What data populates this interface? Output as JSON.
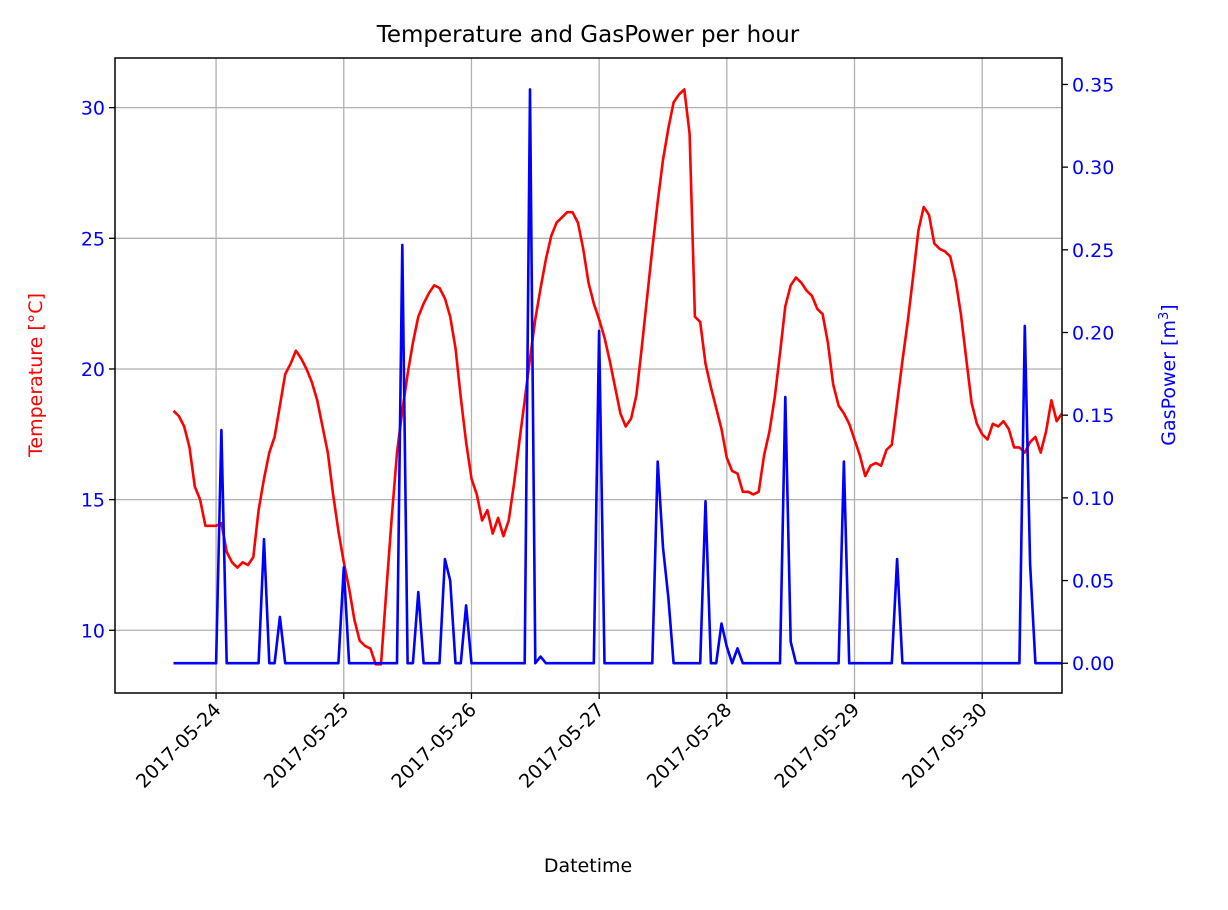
{
  "chart_data": {
    "type": "line",
    "title": "Temperature and GasPower per hour",
    "xlabel": "Datetime",
    "y_left_label": "Temperature [°C]",
    "y_right_label_base": "GasPower [m",
    "y_right_label_sup": "3",
    "y_right_label_end": "]",
    "x_range": [
      "2017-05-23T05:00",
      "2017-05-30T15:00"
    ],
    "x_ticks": [
      "2017-05-24",
      "2017-05-25",
      "2017-05-26",
      "2017-05-27",
      "2017-05-28",
      "2017-05-29",
      "2017-05-30"
    ],
    "y_left_range": [
      7.6,
      31.9
    ],
    "y_left_ticks": [
      "10",
      "15",
      "20",
      "25",
      "30"
    ],
    "y_right_range": [
      -0.018,
      0.366
    ],
    "y_right_ticks": [
      "0.00",
      "0.05",
      "0.10",
      "0.15",
      "0.20",
      "0.25",
      "0.30",
      "0.35"
    ],
    "grid": true,
    "colors": {
      "temperature": "#ff0000",
      "gaspower": "#0000ff",
      "axis_text_left": "#0000ff",
      "axis_text_right": "#0000ff",
      "left_label": "#ff0000",
      "right_label": "#0000ff"
    },
    "series": [
      {
        "axis": "left",
        "points": [
          [
            "2017-05-23T16:00",
            18.4
          ],
          [
            "2017-05-23T17:00",
            18.2
          ],
          [
            "2017-05-23T18:00",
            17.8
          ],
          [
            "2017-05-23T19:00",
            17.0
          ],
          [
            "2017-05-23T20:00",
            15.5
          ],
          [
            "2017-05-23T21:00",
            15.0
          ],
          [
            "2017-05-23T22:00",
            14.0
          ],
          [
            "2017-05-23T23:00",
            14.0
          ],
          [
            "2017-05-24T00:00",
            14.0
          ],
          [
            "2017-05-24T01:00",
            14.1
          ],
          [
            "2017-05-24T02:00",
            13.0
          ],
          [
            "2017-05-24T03:00",
            12.6
          ],
          [
            "2017-05-24T04:00",
            12.4
          ],
          [
            "2017-05-24T05:00",
            12.6
          ],
          [
            "2017-05-24T06:00",
            12.5
          ],
          [
            "2017-05-24T07:00",
            12.8
          ],
          [
            "2017-05-24T08:00",
            14.6
          ],
          [
            "2017-05-24T09:00",
            15.8
          ],
          [
            "2017-05-24T10:00",
            16.8
          ],
          [
            "2017-05-24T11:00",
            17.4
          ],
          [
            "2017-05-24T12:00",
            18.6
          ],
          [
            "2017-05-24T13:00",
            19.8
          ],
          [
            "2017-05-24T14:00",
            20.2
          ],
          [
            "2017-05-24T15:00",
            20.7
          ],
          [
            "2017-05-24T16:00",
            20.4
          ],
          [
            "2017-05-24T17:00",
            20.0
          ],
          [
            "2017-05-24T18:00",
            19.5
          ],
          [
            "2017-05-24T19:00",
            18.8
          ],
          [
            "2017-05-24T20:00",
            17.8
          ],
          [
            "2017-05-24T21:00",
            16.8
          ],
          [
            "2017-05-24T22:00",
            15.2
          ],
          [
            "2017-05-24T23:00",
            13.8
          ],
          [
            "2017-05-25T00:00",
            12.6
          ],
          [
            "2017-05-25T01:00",
            11.6
          ],
          [
            "2017-05-25T02:00",
            10.4
          ],
          [
            "2017-05-25T03:00",
            9.6
          ],
          [
            "2017-05-25T04:00",
            9.4
          ],
          [
            "2017-05-25T05:00",
            9.3
          ],
          [
            "2017-05-25T06:00",
            8.7
          ],
          [
            "2017-05-25T07:00",
            8.7
          ],
          [
            "2017-05-25T08:00",
            11.5
          ],
          [
            "2017-05-25T09:00",
            14.3
          ],
          [
            "2017-05-25T10:00",
            16.8
          ],
          [
            "2017-05-25T11:00",
            18.4
          ],
          [
            "2017-05-25T12:00",
            19.8
          ],
          [
            "2017-05-25T13:00",
            21.0
          ],
          [
            "2017-05-25T14:00",
            22.0
          ],
          [
            "2017-05-25T15:00",
            22.5
          ],
          [
            "2017-05-25T16:00",
            22.9
          ],
          [
            "2017-05-25T17:00",
            23.2
          ],
          [
            "2017-05-25T18:00",
            23.1
          ],
          [
            "2017-05-25T19:00",
            22.7
          ],
          [
            "2017-05-25T20:00",
            22.0
          ],
          [
            "2017-05-25T21:00",
            20.8
          ],
          [
            "2017-05-25T22:00",
            18.9
          ],
          [
            "2017-05-25T23:00",
            17.2
          ],
          [
            "2017-05-26T00:00",
            15.8
          ],
          [
            "2017-05-26T01:00",
            15.2
          ],
          [
            "2017-05-26T02:00",
            14.2
          ],
          [
            "2017-05-26T03:00",
            14.6
          ],
          [
            "2017-05-26T04:00",
            13.7
          ],
          [
            "2017-05-26T05:00",
            14.3
          ],
          [
            "2017-05-26T06:00",
            13.6
          ],
          [
            "2017-05-26T07:00",
            14.2
          ],
          [
            "2017-05-26T08:00",
            15.6
          ],
          [
            "2017-05-26T09:00",
            17.2
          ],
          [
            "2017-05-26T10:00",
            18.8
          ],
          [
            "2017-05-26T11:00",
            20.4
          ],
          [
            "2017-05-26T12:00",
            21.9
          ],
          [
            "2017-05-26T13:00",
            23.1
          ],
          [
            "2017-05-26T14:00",
            24.2
          ],
          [
            "2017-05-26T15:00",
            25.1
          ],
          [
            "2017-05-26T16:00",
            25.6
          ],
          [
            "2017-05-26T17:00",
            25.8
          ],
          [
            "2017-05-26T18:00",
            26.0
          ],
          [
            "2017-05-26T19:00",
            26.0
          ],
          [
            "2017-05-26T20:00",
            25.6
          ],
          [
            "2017-05-26T21:00",
            24.6
          ],
          [
            "2017-05-26T22:00",
            23.3
          ],
          [
            "2017-05-26T23:00",
            22.5
          ],
          [
            "2017-05-27T00:00",
            21.9
          ],
          [
            "2017-05-27T01:00",
            21.2
          ],
          [
            "2017-05-27T02:00",
            20.3
          ],
          [
            "2017-05-27T03:00",
            19.3
          ],
          [
            "2017-05-27T04:00",
            18.3
          ],
          [
            "2017-05-27T05:00",
            17.8
          ],
          [
            "2017-05-27T06:00",
            18.1
          ],
          [
            "2017-05-27T07:00",
            19.0
          ],
          [
            "2017-05-27T08:00",
            20.8
          ],
          [
            "2017-05-27T09:00",
            22.7
          ],
          [
            "2017-05-27T10:00",
            24.6
          ],
          [
            "2017-05-27T11:00",
            26.4
          ],
          [
            "2017-05-27T12:00",
            28.0
          ],
          [
            "2017-05-27T13:00",
            29.2
          ],
          [
            "2017-05-27T14:00",
            30.2
          ],
          [
            "2017-05-27T15:00",
            30.5
          ],
          [
            "2017-05-27T16:00",
            30.7
          ],
          [
            "2017-05-27T17:00",
            29.0
          ],
          [
            "2017-05-27T18:00",
            22.0
          ],
          [
            "2017-05-27T19:00",
            21.8
          ],
          [
            "2017-05-27T20:00",
            20.2
          ],
          [
            "2017-05-27T21:00",
            19.3
          ],
          [
            "2017-05-27T22:00",
            18.5
          ],
          [
            "2017-05-27T23:00",
            17.7
          ],
          [
            "2017-05-28T00:00",
            16.6
          ],
          [
            "2017-05-28T01:00",
            16.1
          ],
          [
            "2017-05-28T02:00",
            16.0
          ],
          [
            "2017-05-28T03:00",
            15.3
          ],
          [
            "2017-05-28T04:00",
            15.3
          ],
          [
            "2017-05-28T05:00",
            15.2
          ],
          [
            "2017-05-28T06:00",
            15.3
          ],
          [
            "2017-05-28T07:00",
            16.7
          ],
          [
            "2017-05-28T08:00",
            17.6
          ],
          [
            "2017-05-28T09:00",
            18.9
          ],
          [
            "2017-05-28T10:00",
            20.6
          ],
          [
            "2017-05-28T11:00",
            22.4
          ],
          [
            "2017-05-28T12:00",
            23.2
          ],
          [
            "2017-05-28T13:00",
            23.5
          ],
          [
            "2017-05-28T14:00",
            23.3
          ],
          [
            "2017-05-28T15:00",
            23.0
          ],
          [
            "2017-05-28T16:00",
            22.8
          ],
          [
            "2017-05-28T17:00",
            22.3
          ],
          [
            "2017-05-28T18:00",
            22.1
          ],
          [
            "2017-05-28T19:00",
            21.0
          ],
          [
            "2017-05-28T20:00",
            19.4
          ],
          [
            "2017-05-28T21:00",
            18.6
          ],
          [
            "2017-05-28T22:00",
            18.3
          ],
          [
            "2017-05-28T23:00",
            17.9
          ],
          [
            "2017-05-29T00:00",
            17.3
          ],
          [
            "2017-05-29T01:00",
            16.7
          ],
          [
            "2017-05-29T02:00",
            15.9
          ],
          [
            "2017-05-29T03:00",
            16.3
          ],
          [
            "2017-05-29T04:00",
            16.4
          ],
          [
            "2017-05-29T05:00",
            16.3
          ],
          [
            "2017-05-29T06:00",
            16.9
          ],
          [
            "2017-05-29T07:00",
            17.1
          ],
          [
            "2017-05-29T08:00",
            18.7
          ],
          [
            "2017-05-29T09:00",
            20.3
          ],
          [
            "2017-05-29T10:00",
            21.8
          ],
          [
            "2017-05-29T11:00",
            23.5
          ],
          [
            "2017-05-29T12:00",
            25.3
          ],
          [
            "2017-05-29T13:00",
            26.2
          ],
          [
            "2017-05-29T14:00",
            25.9
          ],
          [
            "2017-05-29T15:00",
            24.8
          ],
          [
            "2017-05-29T16:00",
            24.6
          ],
          [
            "2017-05-29T17:00",
            24.5
          ],
          [
            "2017-05-29T18:00",
            24.3
          ],
          [
            "2017-05-29T19:00",
            23.4
          ],
          [
            "2017-05-29T20:00",
            22.1
          ],
          [
            "2017-05-29T21:00",
            20.4
          ],
          [
            "2017-05-29T22:00",
            18.7
          ],
          [
            "2017-05-29T23:00",
            17.9
          ],
          [
            "2017-05-30T00:00",
            17.5
          ],
          [
            "2017-05-30T01:00",
            17.3
          ],
          [
            "2017-05-30T02:00",
            17.9
          ],
          [
            "2017-05-30T03:00",
            17.8
          ],
          [
            "2017-05-30T04:00",
            18.0
          ],
          [
            "2017-05-30T05:00",
            17.7
          ],
          [
            "2017-05-30T06:00",
            17.0
          ],
          [
            "2017-05-30T07:00",
            17.0
          ],
          [
            "2017-05-30T08:00",
            16.8
          ],
          [
            "2017-05-30T09:00",
            17.2
          ],
          [
            "2017-05-30T10:00",
            17.4
          ],
          [
            "2017-05-30T11:00",
            16.8
          ],
          [
            "2017-05-30T12:00",
            17.6
          ],
          [
            "2017-05-30T13:00",
            18.8
          ],
          [
            "2017-05-30T14:00",
            18.0
          ],
          [
            "2017-05-30T15:00",
            18.3
          ]
        ]
      },
      {
        "axis": "right",
        "points": [
          [
            "2017-05-23T16:00",
            0.0
          ],
          [
            "2017-05-23T19:00",
            0.0
          ],
          [
            "2017-05-23T23:00",
            0.0
          ],
          [
            "2017-05-24T00:00",
            0.0
          ],
          [
            "2017-05-24T01:00",
            0.141
          ],
          [
            "2017-05-24T02:00",
            0.0
          ],
          [
            "2017-05-24T05:00",
            0.0
          ],
          [
            "2017-05-24T08:00",
            0.0
          ],
          [
            "2017-05-24T09:00",
            0.075
          ],
          [
            "2017-05-24T10:00",
            0.0
          ],
          [
            "2017-05-24T11:00",
            0.0
          ],
          [
            "2017-05-24T12:00",
            0.028
          ],
          [
            "2017-05-24T13:00",
            0.0
          ],
          [
            "2017-05-24T18:00",
            0.0
          ],
          [
            "2017-05-24T23:00",
            0.0
          ],
          [
            "2017-05-25T00:00",
            0.058
          ],
          [
            "2017-05-25T01:00",
            0.0
          ],
          [
            "2017-05-25T05:00",
            0.0
          ],
          [
            "2017-05-25T09:00",
            0.0
          ],
          [
            "2017-05-25T10:00",
            0.0
          ],
          [
            "2017-05-25T11:00",
            0.253
          ],
          [
            "2017-05-25T12:00",
            0.0
          ],
          [
            "2017-05-25T13:00",
            0.0
          ],
          [
            "2017-05-25T14:00",
            0.043
          ],
          [
            "2017-05-25T15:00",
            0.0
          ],
          [
            "2017-05-25T17:00",
            0.0
          ],
          [
            "2017-05-25T18:00",
            0.0
          ],
          [
            "2017-05-25T19:00",
            0.063
          ],
          [
            "2017-05-25T20:00",
            0.05
          ],
          [
            "2017-05-25T21:00",
            0.0
          ],
          [
            "2017-05-25T22:00",
            0.0
          ],
          [
            "2017-05-25T23:00",
            0.035
          ],
          [
            "2017-05-26T00:00",
            0.0
          ],
          [
            "2017-05-26T05:00",
            0.0
          ],
          [
            "2017-05-26T09:00",
            0.0
          ],
          [
            "2017-05-26T10:00",
            0.0
          ],
          [
            "2017-05-26T11:00",
            0.347
          ],
          [
            "2017-05-26T12:00",
            0.0
          ],
          [
            "2017-05-26T13:00",
            0.004
          ],
          [
            "2017-05-26T14:00",
            0.0
          ],
          [
            "2017-05-26T18:00",
            0.0
          ],
          [
            "2017-05-26T23:00",
            0.0
          ],
          [
            "2017-05-27T00:00",
            0.201
          ],
          [
            "2017-05-27T01:00",
            0.0
          ],
          [
            "2017-05-27T05:00",
            0.0
          ],
          [
            "2017-05-27T09:00",
            0.0
          ],
          [
            "2017-05-27T10:00",
            0.0
          ],
          [
            "2017-05-27T11:00",
            0.122
          ],
          [
            "2017-05-27T12:00",
            0.07
          ],
          [
            "2017-05-27T13:00",
            0.04
          ],
          [
            "2017-05-27T14:00",
            0.0
          ],
          [
            "2017-05-27T18:00",
            0.0
          ],
          [
            "2017-05-27T19:00",
            0.0
          ],
          [
            "2017-05-27T20:00",
            0.098
          ],
          [
            "2017-05-27T21:00",
            0.0
          ],
          [
            "2017-05-27T22:00",
            0.0
          ],
          [
            "2017-05-27T23:00",
            0.024
          ],
          [
            "2017-05-28T00:00",
            0.01
          ],
          [
            "2017-05-28T01:00",
            0.0
          ],
          [
            "2017-05-28T02:00",
            0.009
          ],
          [
            "2017-05-28T03:00",
            0.0
          ],
          [
            "2017-05-28T05:00",
            0.0
          ],
          [
            "2017-05-28T09:00",
            0.0
          ],
          [
            "2017-05-28T10:00",
            0.0
          ],
          [
            "2017-05-28T11:00",
            0.161
          ],
          [
            "2017-05-28T12:00",
            0.013
          ],
          [
            "2017-05-28T13:00",
            0.0
          ],
          [
            "2017-05-28T18:00",
            0.0
          ],
          [
            "2017-05-28T21:00",
            0.0
          ],
          [
            "2017-05-28T22:00",
            0.122
          ],
          [
            "2017-05-28T23:00",
            0.0
          ],
          [
            "2017-05-29T03:00",
            0.0
          ],
          [
            "2017-05-29T07:00",
            0.0
          ],
          [
            "2017-05-29T08:00",
            0.063
          ],
          [
            "2017-05-29T09:00",
            0.0
          ],
          [
            "2017-05-29T14:00",
            0.0
          ],
          [
            "2017-05-29T20:00",
            0.0
          ],
          [
            "2017-05-30T02:00",
            0.0
          ],
          [
            "2017-05-30T06:00",
            0.0
          ],
          [
            "2017-05-30T07:00",
            0.0
          ],
          [
            "2017-05-30T08:00",
            0.204
          ],
          [
            "2017-05-30T09:00",
            0.06
          ],
          [
            "2017-05-30T10:00",
            0.0
          ],
          [
            "2017-05-30T15:00",
            0.0
          ]
        ]
      }
    ]
  }
}
